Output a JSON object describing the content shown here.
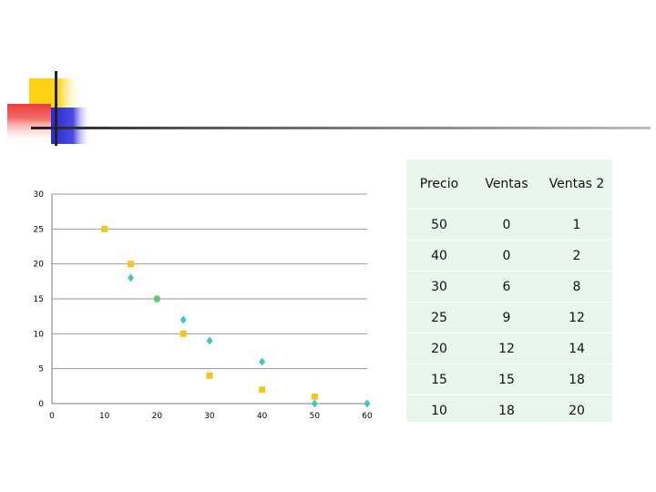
{
  "chart_data": {
    "type": "scatter",
    "title": "",
    "xlabel": "",
    "ylabel": "",
    "xlim": [
      0,
      60
    ],
    "ylim": [
      0,
      30
    ],
    "x_ticks": [
      0,
      10,
      20,
      30,
      40,
      50,
      60
    ],
    "y_ticks": [
      0,
      5,
      10,
      15,
      20,
      25,
      30
    ],
    "grid": "horizontal",
    "series": [
      {
        "color": "#f5c518",
        "marker": "square",
        "points": [
          [
            10,
            25
          ],
          [
            15,
            20
          ],
          [
            20,
            15
          ],
          [
            25,
            10
          ],
          [
            30,
            4
          ],
          [
            40,
            2
          ],
          [
            50,
            1
          ]
        ]
      },
      {
        "color": "#3cc8c0",
        "marker": "diamond",
        "points": [
          [
            15,
            18
          ],
          [
            20,
            15
          ],
          [
            25,
            12
          ],
          [
            30,
            9
          ],
          [
            40,
            6
          ],
          [
            50,
            0
          ],
          [
            60,
            0
          ]
        ]
      }
    ]
  },
  "table": {
    "headers": [
      "Precio",
      "Ventas",
      "Ventas 2"
    ],
    "rows": [
      [
        "50",
        "0",
        "1"
      ],
      [
        "40",
        "0",
        "2"
      ],
      [
        "30",
        "6",
        "8"
      ],
      [
        "25",
        "9",
        "12"
      ],
      [
        "20",
        "12",
        "14"
      ],
      [
        "15",
        "15",
        "18"
      ],
      [
        "10",
        "18",
        "20"
      ]
    ]
  },
  "colors": {
    "logo_yellow": "#fcd116",
    "logo_red": "#ef3b3b",
    "logo_blue": "#2a2ad6",
    "table_background": "#e8f6ee"
  }
}
